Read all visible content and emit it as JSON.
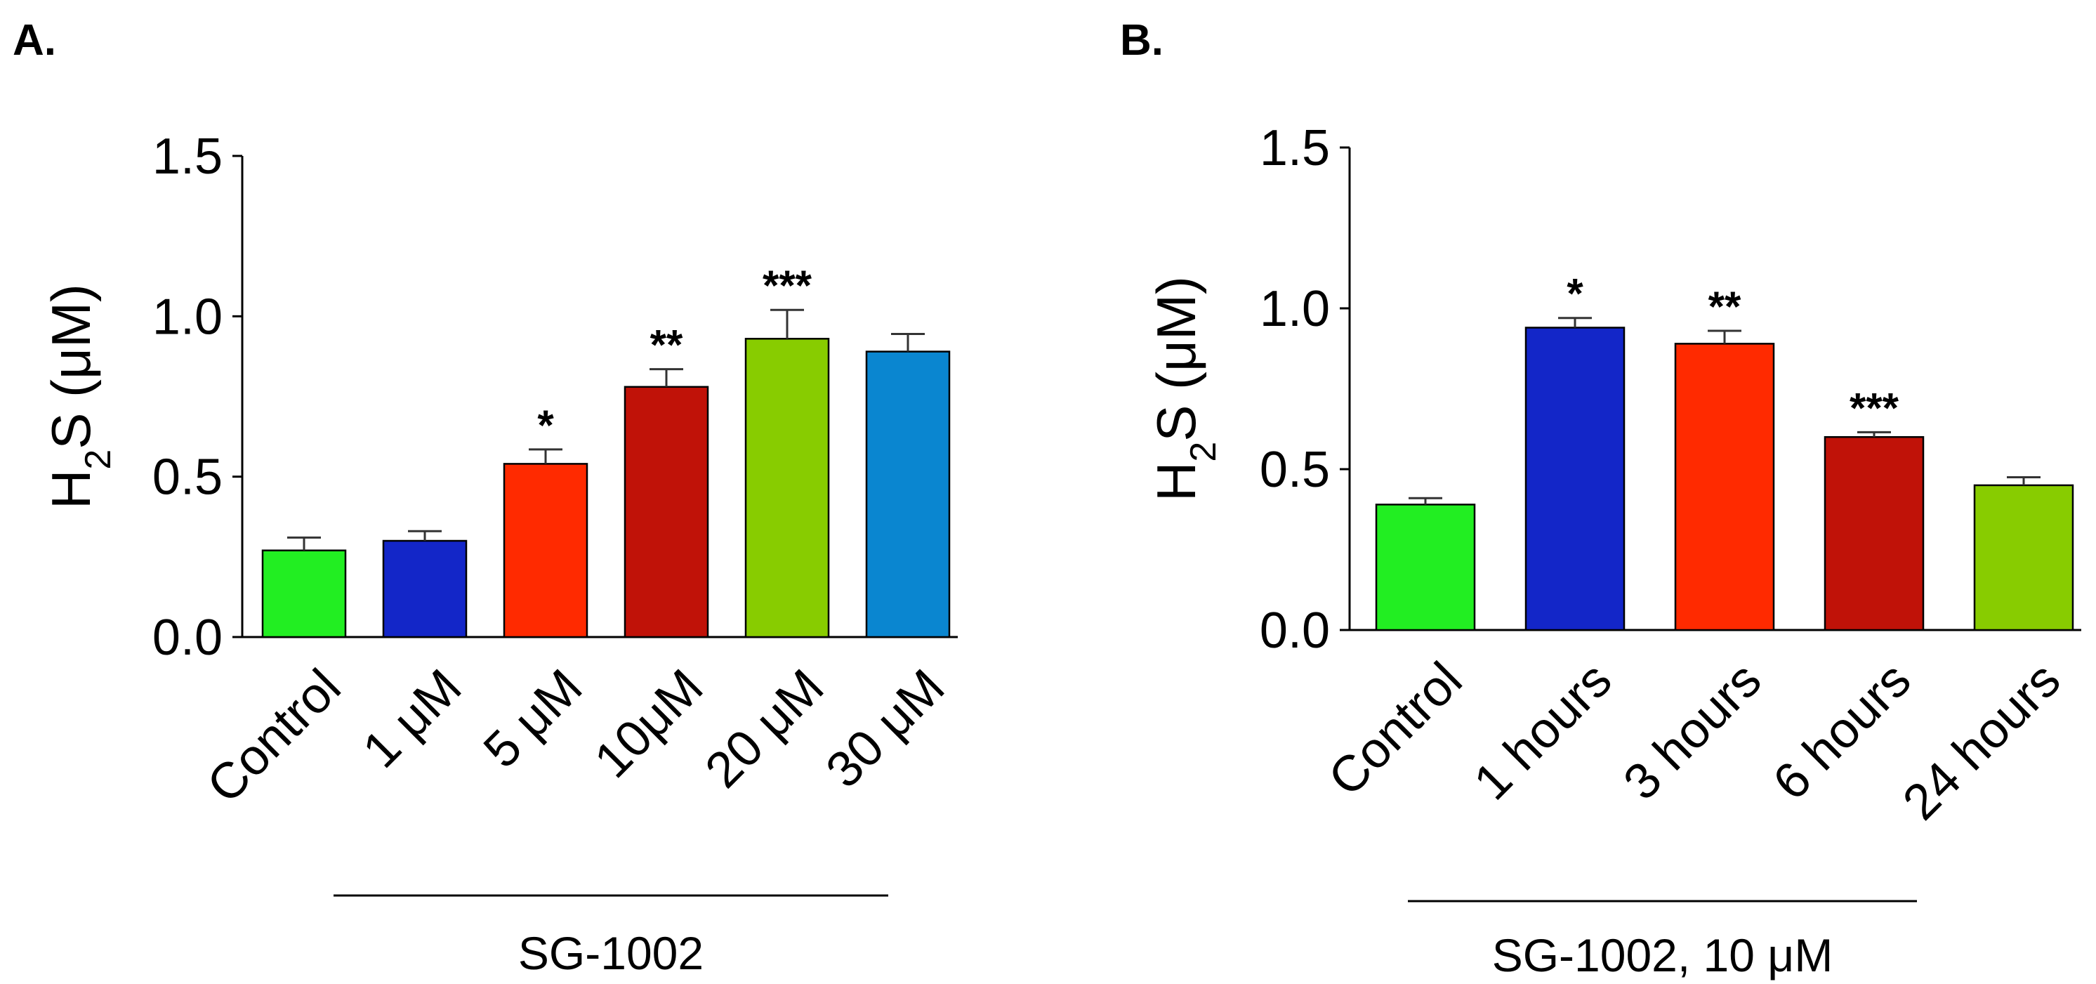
{
  "chart_data": [
    {
      "type": "bar",
      "panel_label": "A.",
      "ylabel": "H2S (μM)",
      "ylabel_parts": {
        "main": "H",
        "sub": "2",
        "rest": "S (μM)"
      },
      "ylim": [
        0,
        1.5
      ],
      "yticks": [
        "0.0",
        "0.5",
        "1.0",
        "1.5"
      ],
      "ytick_values": [
        0,
        0.5,
        1.0,
        1.5
      ],
      "categories": [
        "Control",
        "1 μM",
        "5 μM",
        "10μM",
        "20 μM",
        "30 μM"
      ],
      "values": [
        0.27,
        0.3,
        0.54,
        0.78,
        0.93,
        0.89
      ],
      "errors": [
        0.04,
        0.03,
        0.045,
        0.055,
        0.09,
        0.055
      ],
      "colors": [
        "#22ee22",
        "#1326c8",
        "#ff2a00",
        "#c01208",
        "#88cc00",
        "#0a86d0"
      ],
      "significance": [
        "",
        "",
        "*",
        "**",
        "***",
        ""
      ],
      "group_label": "SG-1002",
      "grid": false
    },
    {
      "type": "bar",
      "panel_label": "B.",
      "ylabel": "H2S (μM)",
      "ylabel_parts": {
        "main": "H",
        "sub": "2",
        "rest": "S (μM)"
      },
      "ylim": [
        0,
        1.5
      ],
      "yticks": [
        "0.0",
        "0.5",
        "1.0",
        "1.5"
      ],
      "ytick_values": [
        0,
        0.5,
        1.0,
        1.5
      ],
      "categories": [
        "Control",
        "1 hours",
        "3 hours",
        "6 hours",
        "24 hours"
      ],
      "values": [
        0.39,
        0.94,
        0.89,
        0.6,
        0.45
      ],
      "errors": [
        0.02,
        0.03,
        0.04,
        0.015,
        0.025
      ],
      "colors": [
        "#22ee22",
        "#1326c8",
        "#ff2a00",
        "#c01208",
        "#88cc00"
      ],
      "significance": [
        "",
        "*",
        "**",
        "***",
        ""
      ],
      "group_label": "SG-1002, 10 μM",
      "grid": false
    }
  ]
}
